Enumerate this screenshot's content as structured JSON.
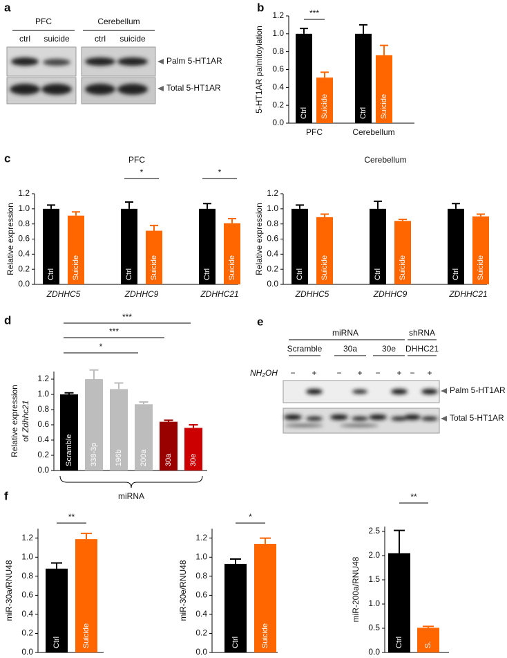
{
  "panel_labels": [
    "a",
    "b",
    "c",
    "d",
    "e",
    "f"
  ],
  "blot_a": {
    "groups": [
      "PFC",
      "Cerebellum"
    ],
    "lanes": [
      "ctrl",
      "suicide",
      "ctrl",
      "suicide"
    ],
    "bands": [
      "Palm 5-HT1AR",
      "Total 5-HT1AR"
    ]
  },
  "blot_e": {
    "groups": [
      "miRNA",
      "shRNA"
    ],
    "lanes": [
      "Scramble",
      "30a",
      "30e",
      "DHHC21"
    ],
    "treatment": "NH₂OH",
    "signs": [
      "−",
      "+",
      "−",
      "+",
      "−",
      "+",
      "−",
      "+"
    ],
    "bands": [
      "Palm 5-HT1AR",
      "Total 5-HT1AR"
    ]
  },
  "chart_data": [
    {
      "type": "bar",
      "y_label": "5-HT1AR palmitoylation",
      "categories": [
        "PFC",
        "Cerebellum"
      ],
      "series": [
        {
          "name": "Ctrl",
          "color": "#000000",
          "values": [
            1.0,
            1.0
          ],
          "errors": [
            0.06,
            0.1
          ]
        },
        {
          "name": "Suicide",
          "color": "#ff6600",
          "values": [
            0.51,
            0.76
          ],
          "errors": [
            0.06,
            0.11
          ]
        }
      ],
      "ylim": [
        0,
        1.2
      ],
      "yticks": [
        {
          "value": 0,
          "label": "0.0"
        },
        {
          "value": 0.2,
          "label": "0.2"
        },
        {
          "value": 0.4,
          "label": "0.4"
        },
        {
          "value": 0.6,
          "label": "0.6"
        },
        {
          "value": 0.8,
          "label": "0.8"
        },
        {
          "value": 1,
          "label": "1.0"
        },
        {
          "value": 1.2,
          "label": "1.2"
        }
      ],
      "annotations": [
        "***"
      ]
    },
    {
      "type": "bar",
      "title": "PFC",
      "y_label": "Relative expression",
      "categories": [
        "ZDHHC5",
        "ZDHHC9",
        "ZDHHC21"
      ],
      "series": [
        {
          "name": "Ctrl",
          "color": "#000000",
          "values": [
            1.0,
            1.0,
            1.0
          ],
          "errors": [
            0.05,
            0.09,
            0.07
          ]
        },
        {
          "name": "Suicide",
          "color": "#ff6600",
          "values": [
            0.91,
            0.71,
            0.81
          ],
          "errors": [
            0.05,
            0.07,
            0.06
          ]
        }
      ],
      "ylim": [
        0,
        1.2
      ],
      "yticks": [
        {
          "value": 0,
          "label": "0.0"
        },
        {
          "value": 0.2,
          "label": "0.2"
        },
        {
          "value": 0.4,
          "label": "0.4"
        },
        {
          "value": 0.6,
          "label": "0.6"
        },
        {
          "value": 0.8,
          "label": "0.8"
        },
        {
          "value": 1,
          "label": "1.0"
        },
        {
          "value": 1.2,
          "label": "1.2"
        }
      ],
      "annotations": [
        "*",
        "*"
      ]
    },
    {
      "type": "bar",
      "title": "Cerebellum",
      "y_label": "Relative expression",
      "categories": [
        "ZDHHC5",
        "ZDHHC9",
        "ZDHHC21"
      ],
      "series": [
        {
          "name": "Ctrl",
          "color": "#000000",
          "values": [
            1.0,
            1.0,
            1.0
          ],
          "errors": [
            0.05,
            0.1,
            0.07
          ]
        },
        {
          "name": "Suicide",
          "color": "#ff6600",
          "values": [
            0.89,
            0.84,
            0.9
          ],
          "errors": [
            0.04,
            0.02,
            0.03
          ]
        }
      ],
      "ylim": [
        0,
        1.2
      ],
      "yticks": [
        {
          "value": 0,
          "label": "0.0"
        },
        {
          "value": 0.2,
          "label": "0.2"
        },
        {
          "value": 0.4,
          "label": "0.4"
        },
        {
          "value": 0.6,
          "label": "0.6"
        },
        {
          "value": 0.8,
          "label": "0.8"
        },
        {
          "value": 1,
          "label": "1.0"
        },
        {
          "value": 1.2,
          "label": "1.2"
        }
      ],
      "annotations": []
    },
    {
      "type": "bar",
      "y_label": [
        "Relative expression",
        "of",
        "Zdhhc21"
      ],
      "x_label": "miRNA",
      "categories": [
        "Scramble",
        "338-3p",
        "196b",
        "200a",
        "30a",
        "30e"
      ],
      "values": [
        1.0,
        1.2,
        1.07,
        0.87,
        0.64,
        0.56
      ],
      "errors": [
        0.02,
        0.12,
        0.08,
        0.03,
        0.02,
        0.04
      ],
      "colors": [
        "#000000",
        "#bdbdbd",
        "#bdbdbd",
        "#bdbdbd",
        "#990000",
        "#cc0000"
      ],
      "ylim": [
        0,
        1.3
      ],
      "yticks": [
        {
          "value": 0,
          "label": "0.0"
        },
        {
          "value": 0.2,
          "label": "0.2"
        },
        {
          "value": 0.4,
          "label": "0.4"
        },
        {
          "value": 0.6,
          "label": "0.6"
        },
        {
          "value": 0.8,
          "label": "0.8"
        },
        {
          "value": 1,
          "label": "1.0"
        },
        {
          "value": 1.2,
          "label": "1.2"
        }
      ],
      "annotations": [
        "***",
        "***",
        "*"
      ]
    },
    {
      "type": "bar",
      "y_label": "miR-30a/RNU48",
      "categories": [
        "Ctrl",
        "Suicide"
      ],
      "values": [
        0.88,
        1.19
      ],
      "errors": [
        0.06,
        0.06
      ],
      "colors": [
        "#000000",
        "#ff6600"
      ],
      "ylim": [
        0,
        1.3
      ],
      "yticks": [
        {
          "value": 0,
          "label": "0.0"
        },
        {
          "value": 0.2,
          "label": "0.2"
        },
        {
          "value": 0.4,
          "label": "0.4"
        },
        {
          "value": 0.6,
          "label": "0.6"
        },
        {
          "value": 0.8,
          "label": "0.8"
        },
        {
          "value": 1,
          "label": "1.0"
        },
        {
          "value": 1.2,
          "label": "1.2"
        }
      ],
      "annotations": [
        "**"
      ]
    },
    {
      "type": "bar",
      "y_label": "miR-30e/RNU48",
      "categories": [
        "Ctrl",
        "Suicide"
      ],
      "values": [
        0.93,
        1.14
      ],
      "errors": [
        0.05,
        0.06
      ],
      "colors": [
        "#000000",
        "#ff6600"
      ],
      "ylim": [
        0,
        1.3
      ],
      "yticks": [
        {
          "value": 0,
          "label": "0.0"
        },
        {
          "value": 0.2,
          "label": "0.2"
        },
        {
          "value": 0.4,
          "label": "0.4"
        },
        {
          "value": 0.6,
          "label": "0.6"
        },
        {
          "value": 0.8,
          "label": "0.8"
        },
        {
          "value": 1,
          "label": "1.0"
        },
        {
          "value": 1.2,
          "label": "1.2"
        }
      ],
      "annotations": [
        "*"
      ]
    },
    {
      "type": "bar",
      "y_label": "miR-200a/RNU48",
      "categories": [
        "Ctrl",
        "S."
      ],
      "values": [
        2.05,
        0.51
      ],
      "errors": [
        0.47,
        0.03
      ],
      "colors": [
        "#000000",
        "#ff6600"
      ],
      "ylim": [
        0,
        2.6
      ],
      "yticks": [
        {
          "value": 0,
          "label": "0.0"
        },
        {
          "value": 0.5,
          "label": "0.5"
        },
        {
          "value": 1,
          "label": "1.0"
        },
        {
          "value": 1.5,
          "label": "1.5"
        },
        {
          "value": 2,
          "label": "2.0"
        },
        {
          "value": 2.5,
          "label": "2.5"
        }
      ],
      "annotations": [
        "**"
      ]
    }
  ]
}
